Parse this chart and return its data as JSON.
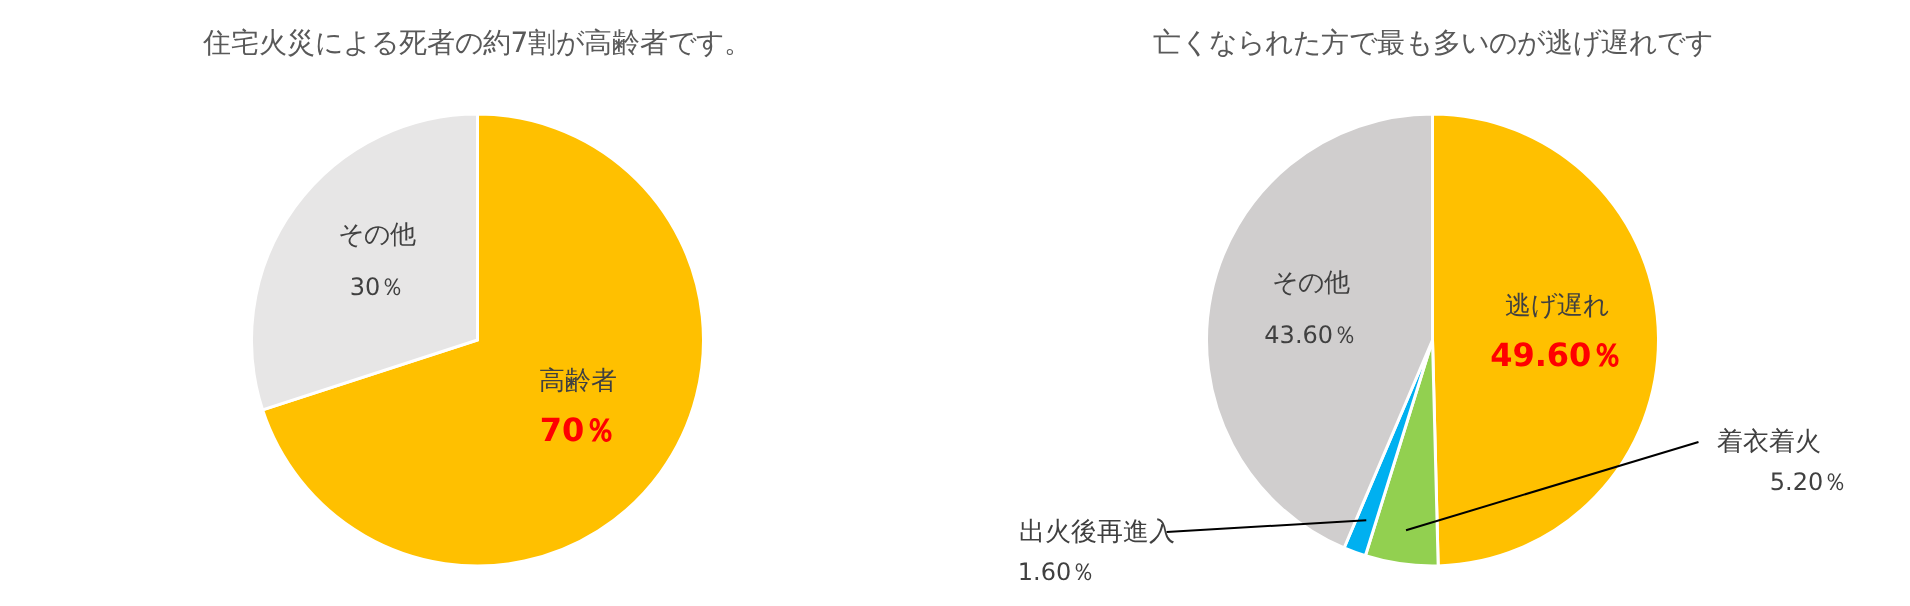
{
  "chart_data": [
    {
      "type": "pie",
      "title": "住宅火災による死者の約7割が高齢者です。",
      "categories": [
        "高齢者",
        "その他"
      ],
      "values": [
        70,
        30
      ],
      "colors": [
        "#ffc000",
        "#e7e6e6"
      ],
      "value_labels": [
        "70％",
        "30％"
      ]
    },
    {
      "type": "pie",
      "title": "亡くなられた方で最も多いのが逃げ遅れです",
      "categories": [
        "逃げ遅れ",
        "着衣着火",
        "出火後再進入",
        "その他"
      ],
      "values": [
        49.6,
        5.2,
        1.6,
        43.6
      ],
      "colors": [
        "#ffc000",
        "#92d050",
        "#00b0f0",
        "#d0cece"
      ],
      "value_labels": [
        "49.60％",
        "5.20％",
        "1.60％",
        "43.60％"
      ]
    }
  ]
}
